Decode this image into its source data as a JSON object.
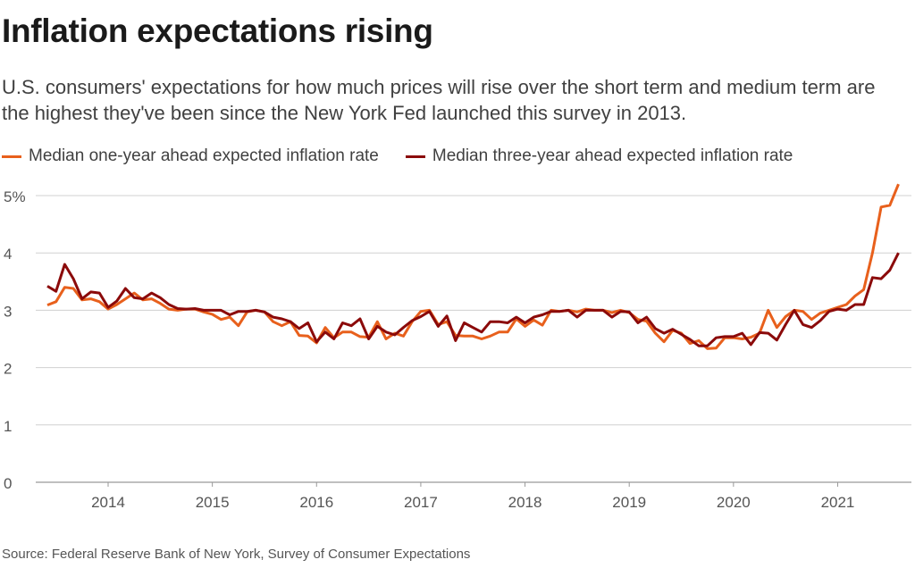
{
  "title": "Inflation expectations rising",
  "subtitle": "U.S. consumers' expectations for how much prices will rise over the short term and medium term are the highest they've been since the New York Fed launched this survey in 2013.",
  "source": "Source: Federal Reserve Bank of New York, Survey of Consumer Expectations",
  "chart_data": {
    "type": "line",
    "title": "Inflation expectations rising",
    "xlabel": "",
    "ylabel": "",
    "x_start": "2013-06",
    "x_frequency": "monthly",
    "x_ticks": [
      "2014",
      "2015",
      "2016",
      "2017",
      "2018",
      "2019",
      "2020",
      "2021"
    ],
    "y_ticks": [
      "0",
      "1",
      "2",
      "3",
      "4",
      "5%"
    ],
    "y_tick_values": [
      0,
      1,
      2,
      3,
      4,
      5
    ],
    "ylim": [
      0,
      5.3
    ],
    "grid": true,
    "legend": "top-left",
    "series": [
      {
        "name": "Median one-year ahead expected inflation rate",
        "color": "#e8601c",
        "values": [
          3.09,
          3.15,
          3.4,
          3.38,
          3.18,
          3.2,
          3.15,
          3.02,
          3.1,
          3.2,
          3.3,
          3.18,
          3.2,
          3.12,
          3.02,
          3.0,
          3.02,
          3.02,
          2.97,
          2.93,
          2.84,
          2.88,
          2.73,
          2.97,
          3.0,
          2.97,
          2.8,
          2.73,
          2.8,
          2.56,
          2.55,
          2.43,
          2.7,
          2.52,
          2.62,
          2.62,
          2.54,
          2.53,
          2.8,
          2.5,
          2.6,
          2.55,
          2.8,
          2.98,
          3.0,
          2.75,
          2.8,
          2.56,
          2.55,
          2.55,
          2.5,
          2.55,
          2.62,
          2.62,
          2.85,
          2.72,
          2.83,
          2.74,
          3.0,
          2.98,
          3.0,
          2.97,
          3.02,
          3.0,
          3.0,
          2.96,
          3.0,
          2.96,
          2.84,
          2.81,
          2.6,
          2.45,
          2.65,
          2.6,
          2.42,
          2.47,
          2.33,
          2.34,
          2.52,
          2.52,
          2.5,
          2.53,
          2.6,
          3.0,
          2.7,
          2.89,
          3.0,
          2.98,
          2.84,
          2.95,
          3.0,
          3.05,
          3.1,
          3.25,
          3.36,
          4.0,
          4.8,
          4.83,
          5.2
        ]
      },
      {
        "name": "Median three-year ahead expected inflation rate",
        "color": "#8b0a0a",
        "values": [
          3.42,
          3.33,
          3.8,
          3.55,
          3.2,
          3.32,
          3.3,
          3.05,
          3.16,
          3.38,
          3.22,
          3.2,
          3.3,
          3.22,
          3.1,
          3.03,
          3.02,
          3.03,
          3.0,
          3.0,
          3.0,
          2.92,
          2.98,
          2.98,
          3.0,
          2.97,
          2.88,
          2.85,
          2.8,
          2.68,
          2.78,
          2.45,
          2.62,
          2.5,
          2.78,
          2.73,
          2.85,
          2.5,
          2.72,
          2.62,
          2.57,
          2.7,
          2.82,
          2.89,
          2.98,
          2.72,
          2.9,
          2.47,
          2.78,
          2.7,
          2.62,
          2.8,
          2.8,
          2.78,
          2.88,
          2.78,
          2.88,
          2.92,
          2.98,
          2.98,
          3.0,
          2.88,
          3.0,
          3.0,
          3.0,
          2.88,
          2.98,
          2.97,
          2.78,
          2.88,
          2.68,
          2.6,
          2.67,
          2.58,
          2.49,
          2.38,
          2.38,
          2.52,
          2.54,
          2.54,
          2.6,
          2.4,
          2.61,
          2.6,
          2.48,
          2.75,
          3.0,
          2.75,
          2.7,
          2.82,
          2.98,
          3.02,
          3.0,
          3.1,
          3.1,
          3.57,
          3.55,
          3.7,
          4.0
        ]
      }
    ]
  }
}
